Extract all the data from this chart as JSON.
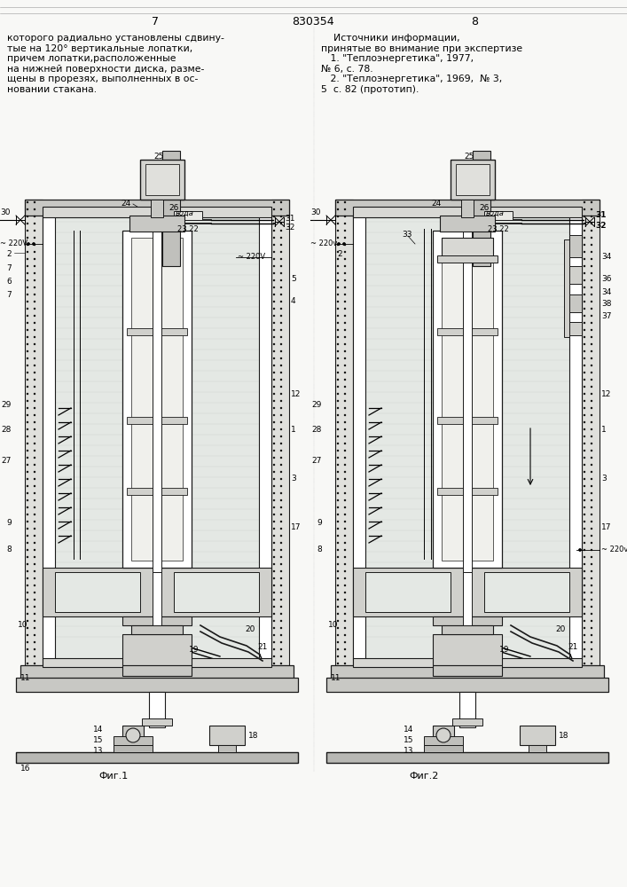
{
  "bg_color": "#f8f8f6",
  "page_width": 7.07,
  "page_height": 10.0,
  "header_left_num": "7",
  "header_center_num": "830354",
  "header_right_num": "8",
  "text_left": "которого радиально установлены сдвину-\nтые на 120° вертикальные лопатки,\nпричем лопатки,расположенные\nна нижней поверхности диска, разме-\nщены в прорезях, выполненных в ос-\nновании стакана.",
  "text_right": "    Источники информации,\nпринятые во внимание при экспертизе\n   1. \"Теплоэнергетика\", 1977,\n№ 6, с. 78.\n   2. \"Теплоэнергетика\", 1969,  № 3,\n5  с. 82 (прототип).",
  "fig1_label": "Фиг.1",
  "fig2_label": "Фиг.2",
  "line_color": "#1a1a1a",
  "dot_color": "#1a1a1a",
  "hatch_gray": "#b0b0b0",
  "light_fill": "#e8e8e4",
  "wall_fill": "#d0d0c8",
  "inner_fill": "#f0f0ec",
  "liquid_fill": "#e4e8e4"
}
